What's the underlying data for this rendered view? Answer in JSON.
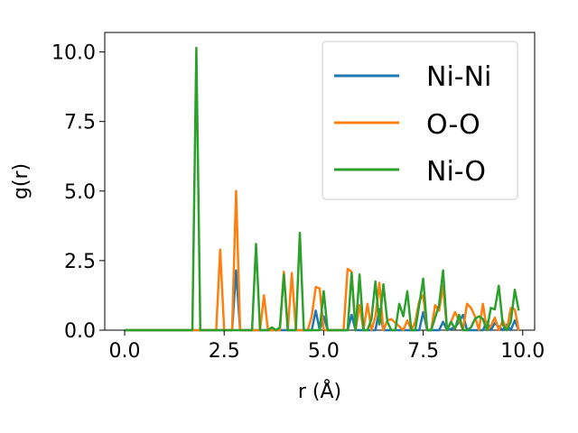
{
  "chart_data": {
    "type": "line",
    "title": "",
    "xlabel": "r (Å)",
    "ylabel": "g(r)",
    "xlim": [
      -0.5,
      10.3
    ],
    "ylim": [
      0,
      10.7
    ],
    "xticks": [
      "0.0",
      "2.5",
      "5.0",
      "7.5",
      "10.0"
    ],
    "yticks": [
      "0.0",
      "2.5",
      "5.0",
      "7.5",
      "10.0"
    ],
    "grid": false,
    "legend_position": "top-right",
    "series": [
      {
        "name": "Ni-Ni",
        "color": "#1f77b4",
        "x": [
          0.0,
          2.6,
          2.7,
          2.8,
          2.9,
          3.0,
          4.6,
          4.7,
          4.8,
          4.9,
          5.0,
          5.1,
          5.2,
          5.6,
          5.7,
          5.8,
          6.3,
          6.4,
          6.5,
          7.4,
          7.5,
          7.6,
          7.9,
          8.0,
          8.1,
          8.3,
          8.4,
          8.5,
          8.6,
          9.0,
          9.1,
          9.2,
          9.3,
          9.5,
          9.6,
          9.7,
          9.8,
          9.9
        ],
        "y": [
          0,
          0,
          0,
          2.15,
          0,
          0,
          0,
          0,
          0.7,
          0,
          0.5,
          0,
          0,
          0,
          0.55,
          0,
          0,
          0.75,
          0,
          0,
          0.65,
          0,
          0,
          0.3,
          0,
          0.1,
          0.3,
          0.55,
          0,
          0,
          0.3,
          0,
          0.25,
          0,
          0.2,
          0,
          0.35,
          0
        ]
      },
      {
        "name": "O-O",
        "color": "#ff7f0e",
        "x": [
          0.0,
          2.2,
          2.3,
          2.4,
          2.5,
          2.6,
          2.7,
          2.8,
          2.9,
          3.0,
          3.4,
          3.5,
          3.6,
          3.9,
          4.0,
          4.1,
          4.2,
          4.3,
          4.6,
          4.7,
          4.8,
          4.9,
          5.0,
          5.1,
          5.5,
          5.6,
          5.7,
          5.8,
          5.9,
          6.0,
          6.1,
          6.2,
          6.3,
          6.4,
          6.5,
          6.6,
          6.7,
          7.0,
          7.1,
          7.2,
          7.3,
          7.4,
          7.5,
          7.6,
          7.7,
          7.8,
          7.9,
          8.0,
          8.1,
          8.2,
          8.3,
          8.4,
          8.5,
          8.6,
          8.7,
          8.8,
          8.9,
          9.0,
          9.1,
          9.2,
          9.3,
          9.4,
          9.5,
          9.6,
          9.7,
          9.8,
          9.9
        ],
        "y": [
          0,
          0,
          0,
          2.9,
          0,
          0,
          0,
          5.0,
          0,
          0,
          0,
          1.25,
          0,
          0,
          2.1,
          0,
          2.05,
          0,
          0,
          0.5,
          1.55,
          1.5,
          0,
          0,
          0,
          2.2,
          2.1,
          0,
          0.9,
          0,
          0.95,
          0,
          0.5,
          1.7,
          0,
          0.35,
          0.4,
          0,
          0.35,
          0,
          0.3,
          1.05,
          1.25,
          0,
          0,
          0.9,
          0.7,
          1.6,
          0,
          0.3,
          0.65,
          0.35,
          0,
          0.95,
          0.8,
          0.5,
          0,
          0.95,
          0,
          0.15,
          0.45,
          0,
          0.35,
          0,
          0.8,
          0.75,
          0
        ]
      },
      {
        "name": "Ni-O",
        "color": "#2ca02c",
        "x": [
          0.0,
          1.7,
          1.8,
          1.9,
          2.0,
          3.2,
          3.3,
          3.4,
          3.6,
          3.7,
          3.8,
          3.9,
          4.0,
          4.1,
          4.2,
          4.3,
          4.4,
          4.5,
          4.9,
          5.0,
          5.1,
          5.6,
          5.7,
          5.8,
          5.9,
          6.0,
          6.1,
          6.2,
          6.3,
          6.4,
          6.5,
          6.6,
          6.7,
          6.8,
          6.9,
          7.0,
          7.1,
          7.2,
          7.3,
          7.4,
          7.5,
          7.6,
          7.7,
          7.8,
          7.9,
          8.0,
          8.1,
          8.2,
          8.3,
          8.4,
          8.5,
          8.6,
          8.7,
          8.8,
          8.9,
          9.0,
          9.1,
          9.2,
          9.3,
          9.4,
          9.5,
          9.6,
          9.7,
          9.8,
          9.9
        ],
        "y": [
          0,
          0,
          10.15,
          0,
          0,
          0,
          3.1,
          0,
          0,
          0.1,
          0,
          0.1,
          2.0,
          0,
          0,
          0,
          3.5,
          0,
          0,
          1.4,
          0,
          0,
          2.05,
          0,
          2.0,
          0,
          0,
          0.4,
          1.75,
          0.2,
          1.65,
          0.3,
          0,
          0,
          0.95,
          0.5,
          1.4,
          0,
          0,
          0.9,
          1.85,
          0,
          0,
          0.45,
          0.9,
          2.15,
          0,
          0.3,
          0.05,
          0.55,
          0,
          0,
          0.1,
          0.4,
          0.5,
          0.4,
          0,
          0.8,
          0.75,
          1.6,
          0.2,
          0,
          0.3,
          1.45,
          0.7
        ]
      }
    ]
  }
}
